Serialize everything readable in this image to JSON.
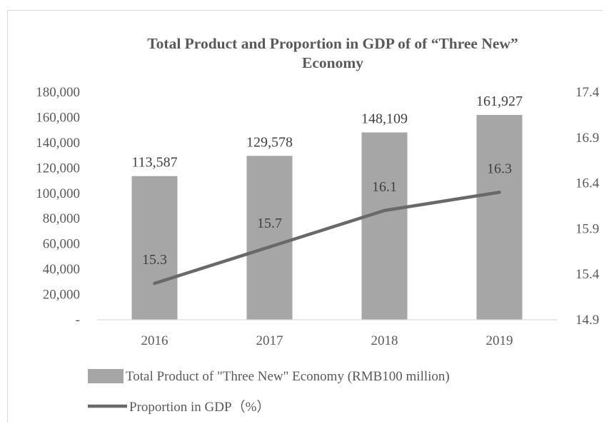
{
  "chart_data": {
    "type": "bar",
    "title_lines": [
      "Total Product and Proportion in GDP of of “Three New”",
      "Economy"
    ],
    "categories": [
      "2016",
      "2017",
      "2018",
      "2019"
    ],
    "series": [
      {
        "name": "Total Product of \"Three New\" Economy (RMB100 million)",
        "type": "bar",
        "axis": "left",
        "values": [
          113587,
          129578,
          148109,
          161927
        ],
        "labels": [
          "113,587",
          "129,578",
          "148,109",
          "161,927"
        ],
        "color": "#a6a6a6"
      },
      {
        "name": "Proportion in GDP（%）",
        "type": "line",
        "axis": "right",
        "values": [
          15.3,
          15.7,
          16.1,
          16.3
        ],
        "labels": [
          "15.3",
          "15.7",
          "16.1",
          "16.3"
        ],
        "color": "#696969"
      }
    ],
    "y_left": {
      "range": [
        0,
        180000
      ],
      "ticks": [
        0,
        20000,
        40000,
        60000,
        80000,
        100000,
        120000,
        140000,
        160000,
        180000
      ],
      "tick_labels": [
        "-",
        "20,000",
        "40,000",
        "60,000",
        "80,000",
        "100,000",
        "120,000",
        "140,000",
        "160,000",
        "180,000"
      ]
    },
    "y_right": {
      "range": [
        14.9,
        17.4
      ],
      "ticks": [
        14.9,
        15.4,
        15.9,
        16.4,
        16.9,
        17.4
      ],
      "tick_labels": [
        "14.9",
        "15.4",
        "15.9",
        "16.4",
        "16.9",
        "17.4"
      ]
    },
    "grid": false,
    "legend_position": "bottom-left"
  }
}
